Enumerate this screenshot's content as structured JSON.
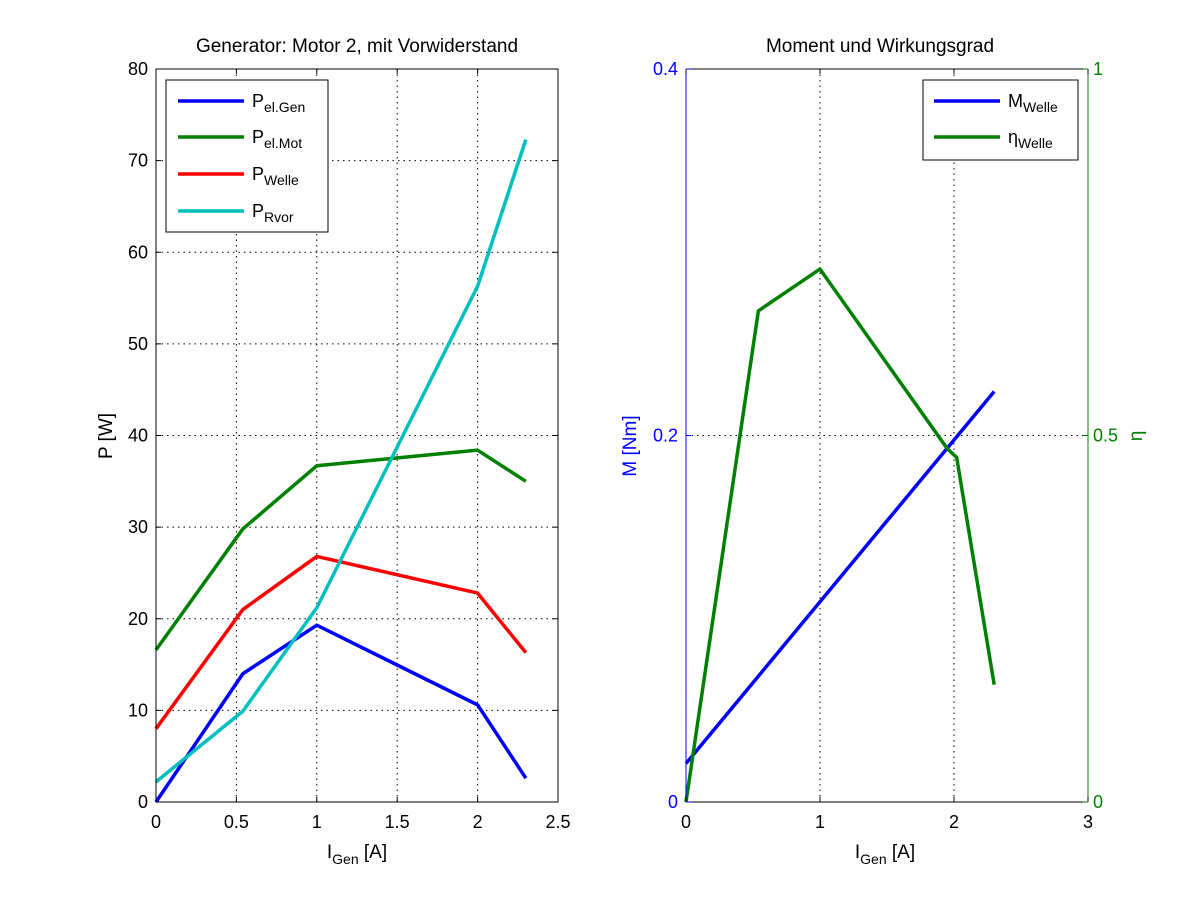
{
  "chart_data": [
    {
      "type": "line",
      "title": "Generator: Motor 2, mit Vorwiderstand",
      "xlabel": {
        "main": "I",
        "sub": "Gen",
        "rest": " [A]"
      },
      "ylabel": "P [W]",
      "xlim": [
        0,
        2.5
      ],
      "ylim": [
        0,
        80
      ],
      "xticks": [
        0,
        0.5,
        1,
        1.5,
        2,
        2.5
      ],
      "xtick_labels": [
        "0",
        "0.5",
        "1",
        "1.5",
        "2",
        "2.5"
      ],
      "yticks": [
        0,
        10,
        20,
        30,
        40,
        50,
        60,
        70,
        80
      ],
      "ytick_labels": [
        "0",
        "10",
        "20",
        "30",
        "40",
        "50",
        "60",
        "70",
        "80"
      ],
      "grid": true,
      "legend_position": "top-left",
      "series": [
        {
          "name": "P",
          "sub": "el.Gen",
          "color": "#0000ff",
          "x": [
            0,
            0.54,
            1.0,
            2.0,
            2.3
          ],
          "y": [
            0,
            14,
            19.3,
            10.6,
            2.6
          ]
        },
        {
          "name": "P",
          "sub": "el.Mot",
          "color": "#008000",
          "x": [
            0,
            0.54,
            1.0,
            2.0,
            2.3
          ],
          "y": [
            16.6,
            29.8,
            36.7,
            38.4,
            35.0
          ]
        },
        {
          "name": "P",
          "sub": "Welle",
          "color": "#ff0000",
          "x": [
            0,
            0.54,
            1.0,
            2.0,
            2.3
          ],
          "y": [
            8.0,
            21.0,
            26.8,
            22.8,
            16.3
          ]
        },
        {
          "name": "P",
          "sub": "Rvor",
          "color": "#00bfbf",
          "x": [
            0,
            0.54,
            1.0,
            2.0,
            2.3
          ],
          "y": [
            2.2,
            9.9,
            21.2,
            56.3,
            72.3
          ]
        }
      ]
    },
    {
      "type": "line",
      "title": "Moment und Wirkungsgrad",
      "xlabel": {
        "main": "I",
        "sub": "Gen",
        "rest": " [A]"
      },
      "ylabel_left": "M [Nm]",
      "ylabel_right": "η",
      "xlim": [
        0,
        3
      ],
      "ylim_left": [
        0,
        0.4
      ],
      "ylim_right": [
        0,
        1
      ],
      "xticks": [
        0,
        1,
        2,
        3
      ],
      "xtick_labels": [
        "0",
        "1",
        "2",
        "3"
      ],
      "yticks_left": [
        0,
        0.2,
        0.4
      ],
      "ytick_labels_left": [
        "0",
        "0.2",
        "0.4"
      ],
      "yticks_right": [
        0,
        0.5,
        1
      ],
      "ytick_labels_right": [
        "0",
        "0.5",
        "1"
      ],
      "left_axis_color": "#0000ff",
      "right_axis_color": "#008000",
      "grid": true,
      "legend_position": "top-right",
      "series": [
        {
          "name": "M",
          "sub": "Welle",
          "color": "#0000ff",
          "axis": "left",
          "x": [
            0,
            2.3
          ],
          "y": [
            0.021,
            0.224
          ]
        },
        {
          "name": "η",
          "sub": "Welle",
          "color": "#008000",
          "axis": "right",
          "x": [
            0,
            0.54,
            1.0,
            1.95,
            2.02,
            2.3
          ],
          "y": [
            0,
            0.67,
            0.727,
            0.482,
            0.47,
            0.16
          ]
        }
      ]
    }
  ]
}
